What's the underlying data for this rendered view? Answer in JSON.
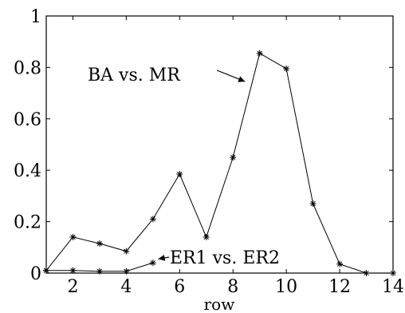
{
  "chart_data": {
    "type": "line",
    "xlabel": "row",
    "ylabel": "",
    "xlim": [
      1,
      14
    ],
    "ylim": [
      0,
      1
    ],
    "xticks": [
      2,
      4,
      6,
      8,
      10,
      12,
      14
    ],
    "xtick_labels": [
      "2",
      "4",
      "6",
      "8",
      "10",
      "12",
      "14"
    ],
    "yticks": [
      0,
      0.2,
      0.4,
      0.6,
      0.8,
      1
    ],
    "ytick_labels": [
      "0",
      "0.2",
      "0.4",
      "0.6",
      "0.8",
      "1"
    ],
    "grid": false,
    "marker": "asterisk",
    "color": "#000000",
    "series": [
      {
        "x": [
          1,
          2,
          3,
          4,
          5,
          6,
          7,
          8,
          9,
          10,
          11,
          12,
          13,
          14
        ],
        "values": [
          0.01,
          0.14,
          0.115,
          0.085,
          0.21,
          0.385,
          0.14,
          0.45,
          0.855,
          0.795,
          0.27,
          0.035,
          0.0,
          0.0
        ]
      },
      {
        "x": [
          1,
          2,
          3,
          4,
          5
        ],
        "values": [
          0.01,
          0.01,
          0.007,
          0.007,
          0.04
        ]
      }
    ],
    "annotations": [
      {
        "text": "BA vs. MR",
        "arrow_to": {
          "x": 8.45,
          "y": 0.745
        }
      },
      {
        "text": "ER1 vs. ER2",
        "arrow_to": {
          "x": 5.2,
          "y": 0.055
        }
      }
    ]
  }
}
